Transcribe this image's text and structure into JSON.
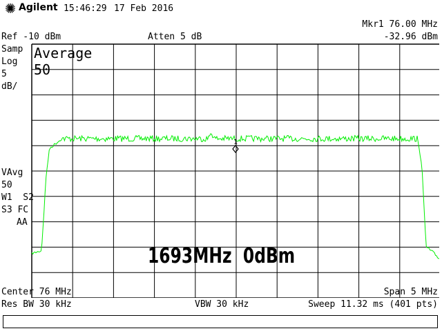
{
  "header": {
    "brand": "Agilent",
    "time": "15:46:29",
    "date": "17 Feb 2016"
  },
  "marker": {
    "label": "Mkr1 76.00 MHz",
    "value": "-32.96 dBm",
    "number": "1"
  },
  "settings": {
    "ref": "Ref -10 dBm",
    "atten": "Atten 5 dB"
  },
  "left_panel": {
    "samp": "Samp",
    "log": "Log",
    "scale": "5",
    "unit": "dB/",
    "vavg": "VAvg",
    "vavg_count": "50",
    "w1s2": "W1  S2",
    "s3fc": "S3 FC",
    "aa": "AA"
  },
  "display": {
    "average_label": "Average",
    "average_count": "50",
    "overlay_text": "1693MHz  0dBm"
  },
  "footer": {
    "center": "Center 76 MHz",
    "span": "Span 5 MHz",
    "res_bw": "Res BW 30 kHz",
    "vbw": "VBW 30 kHz",
    "sweep": "Sweep 11.32 ms (401 pts)"
  },
  "colors": {
    "trace": "#00ee00",
    "grid": "#000000",
    "marker": "#000000"
  }
}
